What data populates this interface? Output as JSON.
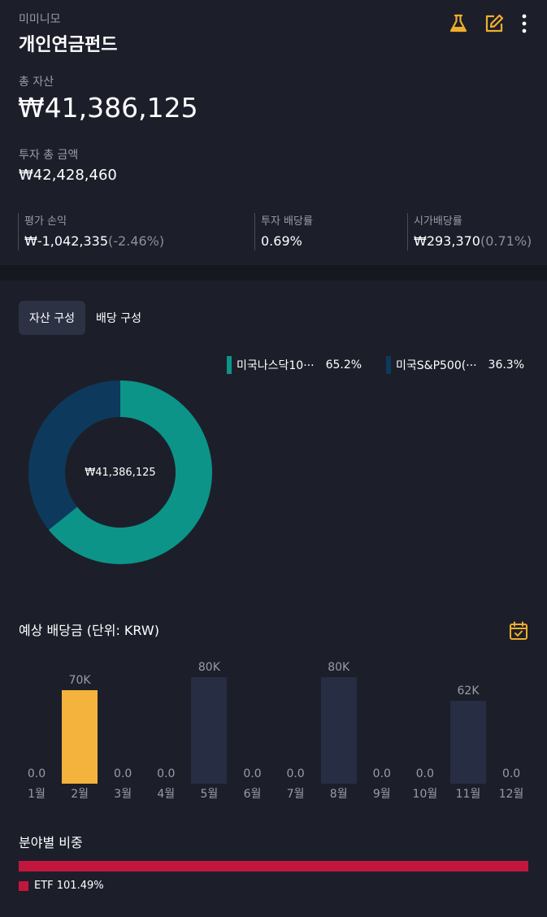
{
  "header": {
    "subtitle": "미미니모",
    "title": "개인연금펀드",
    "icons": [
      "flask-icon",
      "edit-icon",
      "more-vertical-icon"
    ],
    "accent_color": "#f0ae2c"
  },
  "summary": {
    "total_label": "총 자산",
    "total_value": "₩41,386,125",
    "invest_label": "투자 총 금액",
    "invest_value": "₩42,428,460",
    "stats": [
      {
        "label": "평가 손익",
        "value": "₩-1,042,335",
        "pct": "(-2.46%)"
      },
      {
        "label": "투자 배당률",
        "value": "0.69%",
        "pct": ""
      },
      {
        "label": "시가배당률",
        "value": "₩293,370",
        "pct": "(0.71%)"
      }
    ]
  },
  "tabs": [
    {
      "label": "자산 구성",
      "active": true
    },
    {
      "label": "배당 구성",
      "active": false
    }
  ],
  "allocation": {
    "center_label": "₩41,386,125",
    "items": [
      {
        "name": "미국나스닥10···",
        "pct": "65.2%",
        "value": 65.2,
        "color": "#0c9488"
      },
      {
        "name": "미국S&P500(···",
        "pct": "36.3%",
        "value": 36.3,
        "color": "#0d3a5c"
      }
    ]
  },
  "dividends": {
    "title": "예상 배당금 (단위: KRW)",
    "calendar_icon": "calendar-check-icon",
    "months": [
      {
        "month": "1월",
        "label": "0.0",
        "value": 0
      },
      {
        "month": "2월",
        "label": "70K",
        "value": 70000,
        "highlight": true
      },
      {
        "month": "3월",
        "label": "0.0",
        "value": 0
      },
      {
        "month": "4월",
        "label": "0.0",
        "value": 0
      },
      {
        "month": "5월",
        "label": "80K",
        "value": 80000
      },
      {
        "month": "6월",
        "label": "0.0",
        "value": 0
      },
      {
        "month": "7월",
        "label": "0.0",
        "value": 0
      },
      {
        "month": "8월",
        "label": "80K",
        "value": 80000
      },
      {
        "month": "9월",
        "label": "0.0",
        "value": 0
      },
      {
        "month": "10월",
        "label": "0.0",
        "value": 0
      },
      {
        "month": "11월",
        "label": "62K",
        "value": 62000
      },
      {
        "month": "12월",
        "label": "0.0",
        "value": 0
      }
    ],
    "bar_color": "#272d42",
    "highlight_color": "#f3b33d"
  },
  "sectors": {
    "title": "분야별 비중",
    "items": [
      {
        "label": "ETF 101.49%",
        "value": 101.49,
        "color": "#c2163f"
      }
    ]
  }
}
